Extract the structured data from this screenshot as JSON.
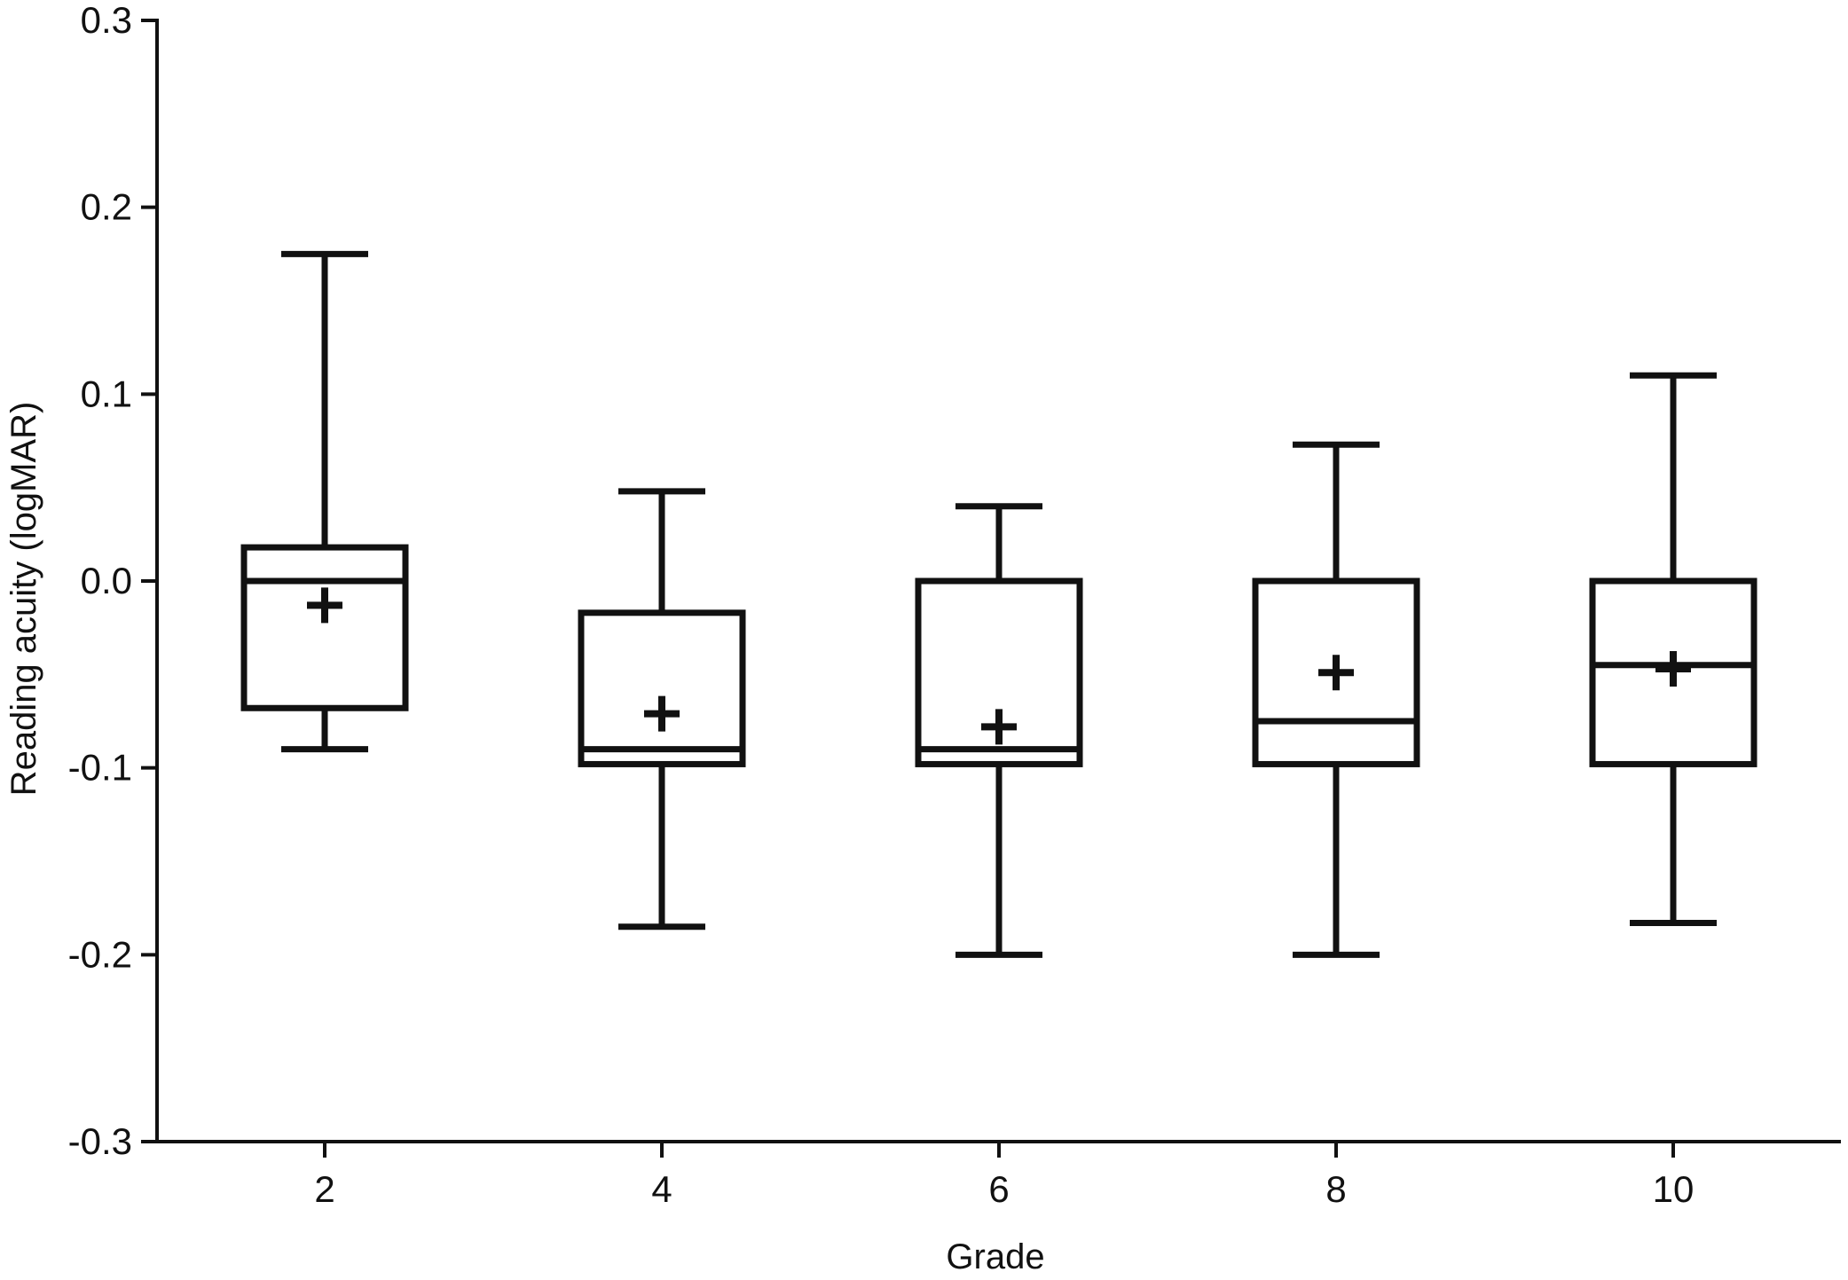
{
  "chart_data": {
    "type": "boxplot",
    "xlabel": "Grade",
    "ylabel": "Reading acuity (logMAR)",
    "ylim": [
      -0.3,
      0.3
    ],
    "y_ticks": [
      "0.3",
      "0.2",
      "0.1",
      "0.0",
      "-0.1",
      "-0.2",
      "-0.3"
    ],
    "y_tick_values": [
      0.3,
      0.2,
      0.1,
      0.0,
      -0.1,
      -0.2,
      -0.3
    ],
    "categories": [
      "2",
      "4",
      "6",
      "8",
      "10"
    ],
    "grid": false,
    "legend": "none",
    "boxes": [
      {
        "category": "2",
        "min": -0.09,
        "q1": -0.068,
        "median": 0.0,
        "q3": 0.018,
        "max": 0.175,
        "mean": -0.013
      },
      {
        "category": "4",
        "min": -0.185,
        "q1": -0.098,
        "median": -0.09,
        "q3": -0.017,
        "max": 0.048,
        "mean": -0.071
      },
      {
        "category": "6",
        "min": -0.2,
        "q1": -0.098,
        "median": -0.09,
        "q3": 0.0,
        "max": 0.04,
        "mean": -0.078
      },
      {
        "category": "8",
        "min": -0.2,
        "q1": -0.098,
        "median": -0.075,
        "q3": 0.0,
        "max": 0.073,
        "mean": -0.049
      },
      {
        "category": "10",
        "min": -0.183,
        "q1": -0.098,
        "median": -0.045,
        "q3": 0.0,
        "max": 0.11,
        "mean": -0.047
      }
    ]
  },
  "colors": {
    "ink": "#111111",
    "background": "#ffffff"
  }
}
